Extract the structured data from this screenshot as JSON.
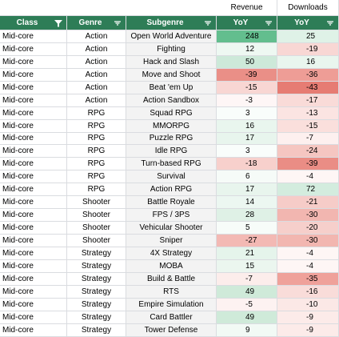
{
  "group_headers": {
    "revenue": "Revenue",
    "downloads": "Downloads"
  },
  "columns": {
    "class": "Class",
    "genre": "Genre",
    "subgenre": "Subgenre",
    "revenue_yoy": "YoY",
    "downloads_yoy": "YoY"
  },
  "colors": {
    "header_bg": "#2e7d57",
    "pos_strong": "#57bb8a",
    "neg_strong": "#e67c73",
    "neutral": "#ffffff"
  },
  "rows": [
    {
      "class": "Mid-core",
      "genre": "Action",
      "subgenre": "Open World Adventure",
      "rev": "248",
      "dl": "25",
      "rev_bg": "#63be8e",
      "dl_bg": "#dff2e7"
    },
    {
      "class": "Mid-core",
      "genre": "Action",
      "subgenre": "Fighting",
      "rev": "12",
      "dl": "-19",
      "rev_bg": "#eef8f2",
      "dl_bg": "#f8d7d4"
    },
    {
      "class": "Mid-core",
      "genre": "Action",
      "subgenre": "Hack and Slash",
      "rev": "50",
      "dl": "16",
      "rev_bg": "#cde9d9",
      "dl_bg": "#e9f6ee"
    },
    {
      "class": "Mid-core",
      "genre": "Action",
      "subgenre": "Move and Shoot",
      "rev": "-39",
      "dl": "-36",
      "rev_bg": "#ea8f87",
      "dl_bg": "#ee9d96"
    },
    {
      "class": "Mid-core",
      "genre": "Action",
      "subgenre": "Beat 'em Up",
      "rev": "-15",
      "dl": "-43",
      "rev_bg": "#f8d6d3",
      "dl_bg": "#e67c73"
    },
    {
      "class": "Mid-core",
      "genre": "Action",
      "subgenre": "Action Sandbox",
      "rev": "-3",
      "dl": "-17",
      "rev_bg": "#fef6f6",
      "dl_bg": "#f9dbd8"
    },
    {
      "class": "Mid-core",
      "genre": "RPG",
      "subgenre": "Squad RPG",
      "rev": "3",
      "dl": "-13",
      "rev_bg": "#f9fdfb",
      "dl_bg": "#fbe4e2"
    },
    {
      "class": "Mid-core",
      "genre": "RPG",
      "subgenre": "MMORPG",
      "rev": "16",
      "dl": "-15",
      "rev_bg": "#e9f6ee",
      "dl_bg": "#fadfdc"
    },
    {
      "class": "Mid-core",
      "genre": "RPG",
      "subgenre": "Puzzle RPG",
      "rev": "17",
      "dl": "-7",
      "rev_bg": "#e8f5ed",
      "dl_bg": "#fdf0ef"
    },
    {
      "class": "Mid-core",
      "genre": "RPG",
      "subgenre": "Idle RPG",
      "rev": "3",
      "dl": "-24",
      "rev_bg": "#f9fdfb",
      "dl_bg": "#f5c6c1"
    },
    {
      "class": "Mid-core",
      "genre": "RPG",
      "subgenre": "Turn-based RPG",
      "rev": "-18",
      "dl": "-39",
      "rev_bg": "#f7d0cc",
      "dl_bg": "#ea8d85"
    },
    {
      "class": "Mid-core",
      "genre": "RPG",
      "subgenre": "Survival",
      "rev": "6",
      "dl": "-4",
      "rev_bg": "#f6fbf8",
      "dl_bg": "#fef6f5"
    },
    {
      "class": "Mid-core",
      "genre": "RPG",
      "subgenre": "Action RPG",
      "rev": "17",
      "dl": "72",
      "rev_bg": "#e8f5ed",
      "dl_bg": "#d3ecde"
    },
    {
      "class": "Mid-core",
      "genre": "Shooter",
      "subgenre": "Battle Royale",
      "rev": "14",
      "dl": "-21",
      "rev_bg": "#ecf7f1",
      "dl_bg": "#f6ccc8"
    },
    {
      "class": "Mid-core",
      "genre": "Shooter",
      "subgenre": "FPS / 3PS",
      "rev": "28",
      "dl": "-30",
      "rev_bg": "#dff1e6",
      "dl_bg": "#f2b6b0"
    },
    {
      "class": "Mid-core",
      "genre": "Shooter",
      "subgenre": "Vehicular Shooter",
      "rev": "5",
      "dl": "-20",
      "rev_bg": "#f7fcf9",
      "dl_bg": "#f6cfcb"
    },
    {
      "class": "Mid-core",
      "genre": "Shooter",
      "subgenre": "Sniper",
      "rev": "-27",
      "dl": "-30",
      "rev_bg": "#f3b9b4",
      "dl_bg": "#f2b6b0"
    },
    {
      "class": "Mid-core",
      "genre": "Strategy",
      "subgenre": "4X Strategy",
      "rev": "21",
      "dl": "-4",
      "rev_bg": "#e5f4eb",
      "dl_bg": "#fef6f5"
    },
    {
      "class": "Mid-core",
      "genre": "Strategy",
      "subgenre": "MOBA",
      "rev": "15",
      "dl": "-4",
      "rev_bg": "#ebf6ef",
      "dl_bg": "#fef6f5"
    },
    {
      "class": "Mid-core",
      "genre": "Strategy",
      "subgenre": "Build & Battle",
      "rev": "-7",
      "dl": "-35",
      "rev_bg": "#fcedeb",
      "dl_bg": "#efa19a"
    },
    {
      "class": "Mid-core",
      "genre": "Strategy",
      "subgenre": "RTS",
      "rev": "49",
      "dl": "-16",
      "rev_bg": "#cfead9",
      "dl_bg": "#f9dcd9"
    },
    {
      "class": "Mid-core",
      "genre": "Strategy",
      "subgenre": "Empire Simulation",
      "rev": "-5",
      "dl": "-10",
      "rev_bg": "#fdf2f1",
      "dl_bg": "#fbe8e6"
    },
    {
      "class": "Mid-core",
      "genre": "Strategy",
      "subgenre": "Card Battler",
      "rev": "49",
      "dl": "-9",
      "rev_bg": "#cfead9",
      "dl_bg": "#fcebe9"
    },
    {
      "class": "Mid-core",
      "genre": "Strategy",
      "subgenre": "Tower Defense",
      "rev": "9",
      "dl": "-9",
      "rev_bg": "#f2faf5",
      "dl_bg": "#fcebe9"
    }
  ]
}
